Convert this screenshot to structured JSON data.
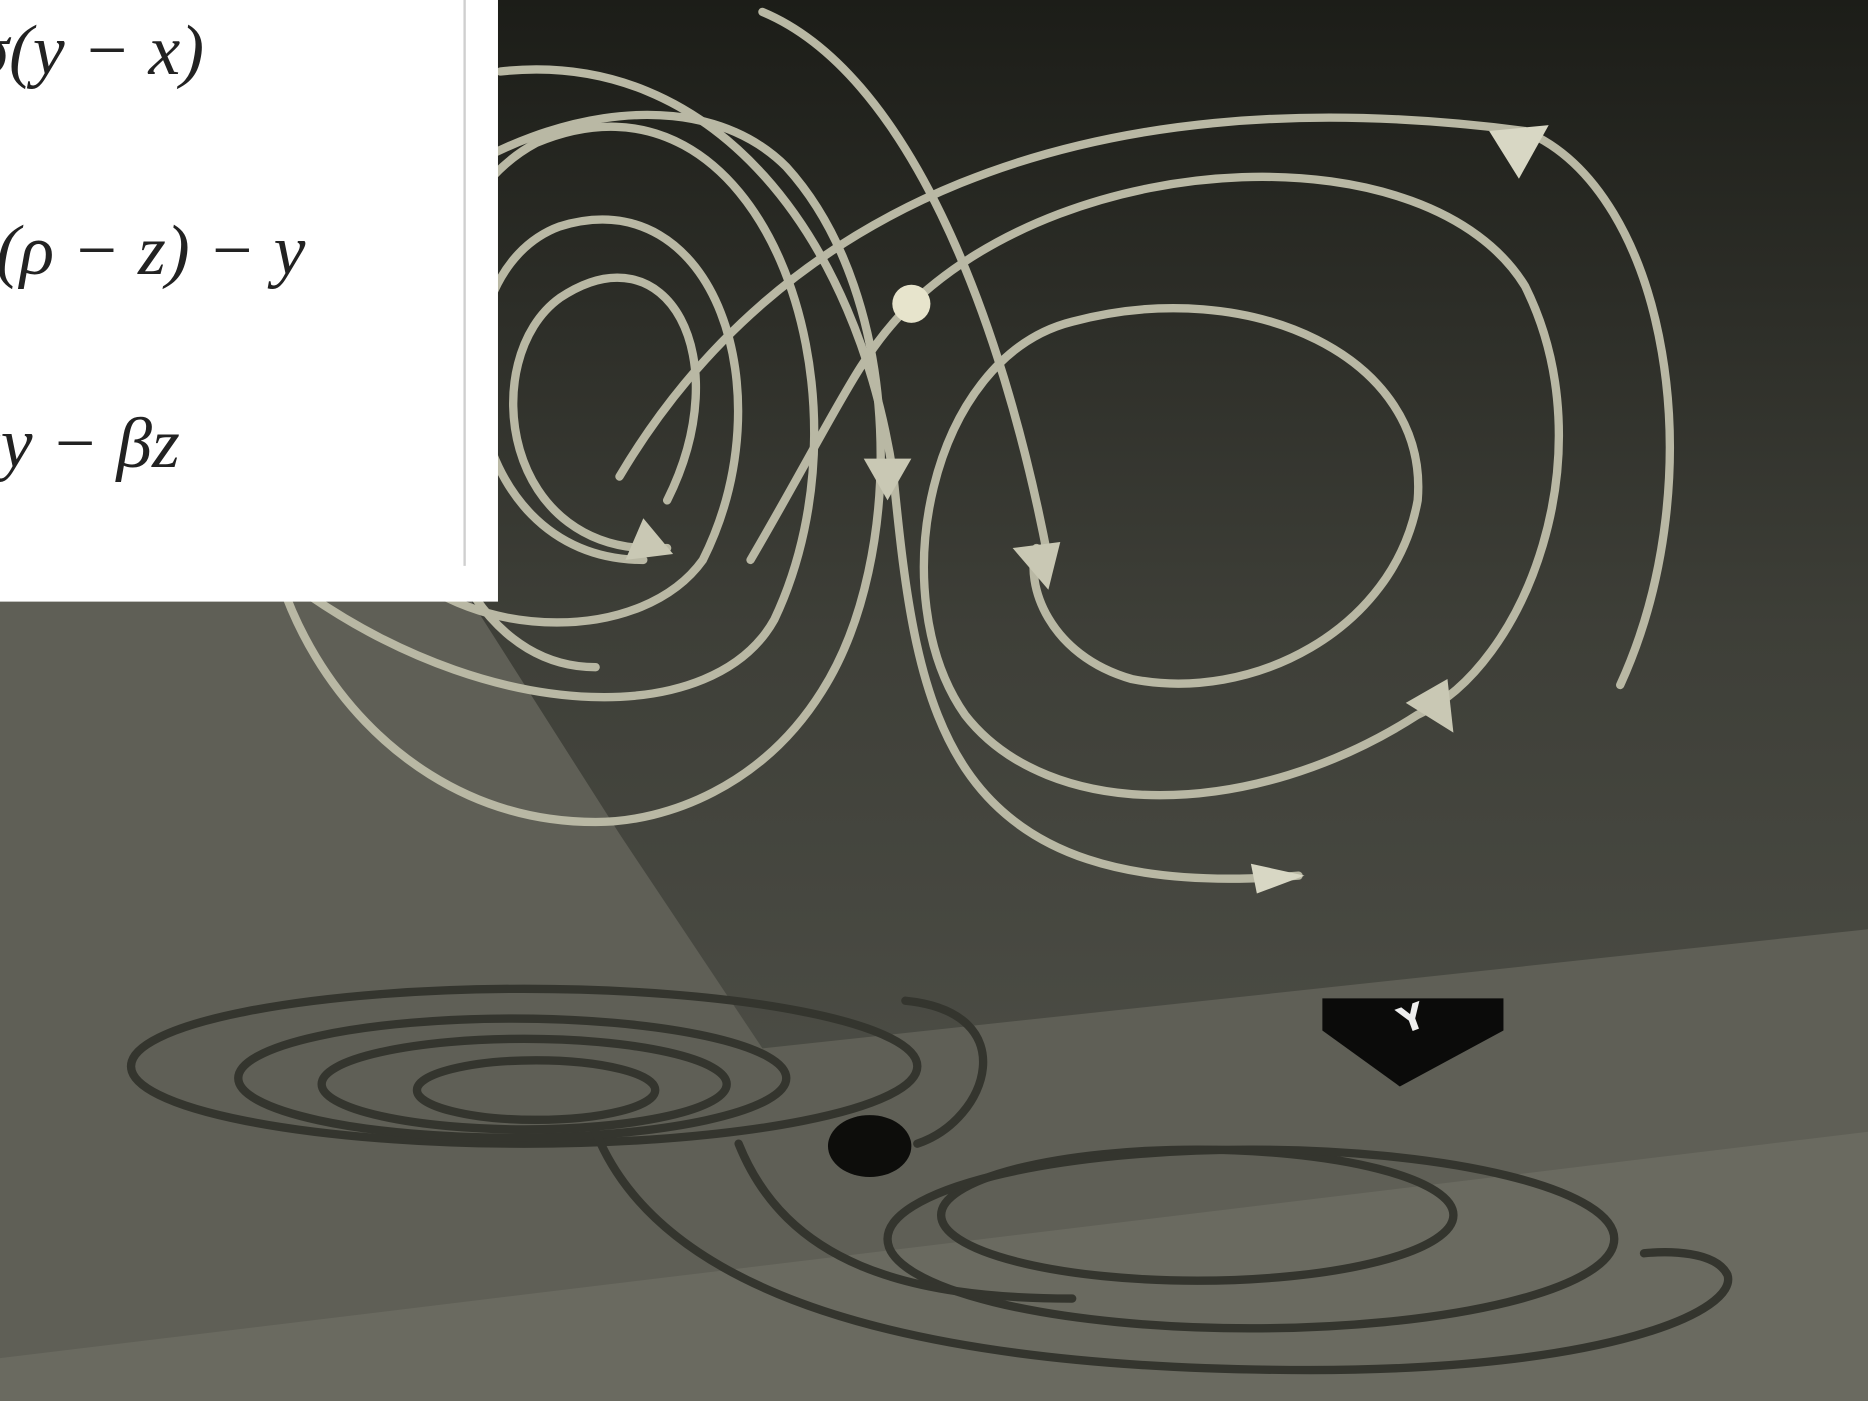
{
  "equations": [
    "σ(y − x)",
    "x(ρ − z) − y",
    "xy − βz"
  ],
  "axis_label": "Y"
}
